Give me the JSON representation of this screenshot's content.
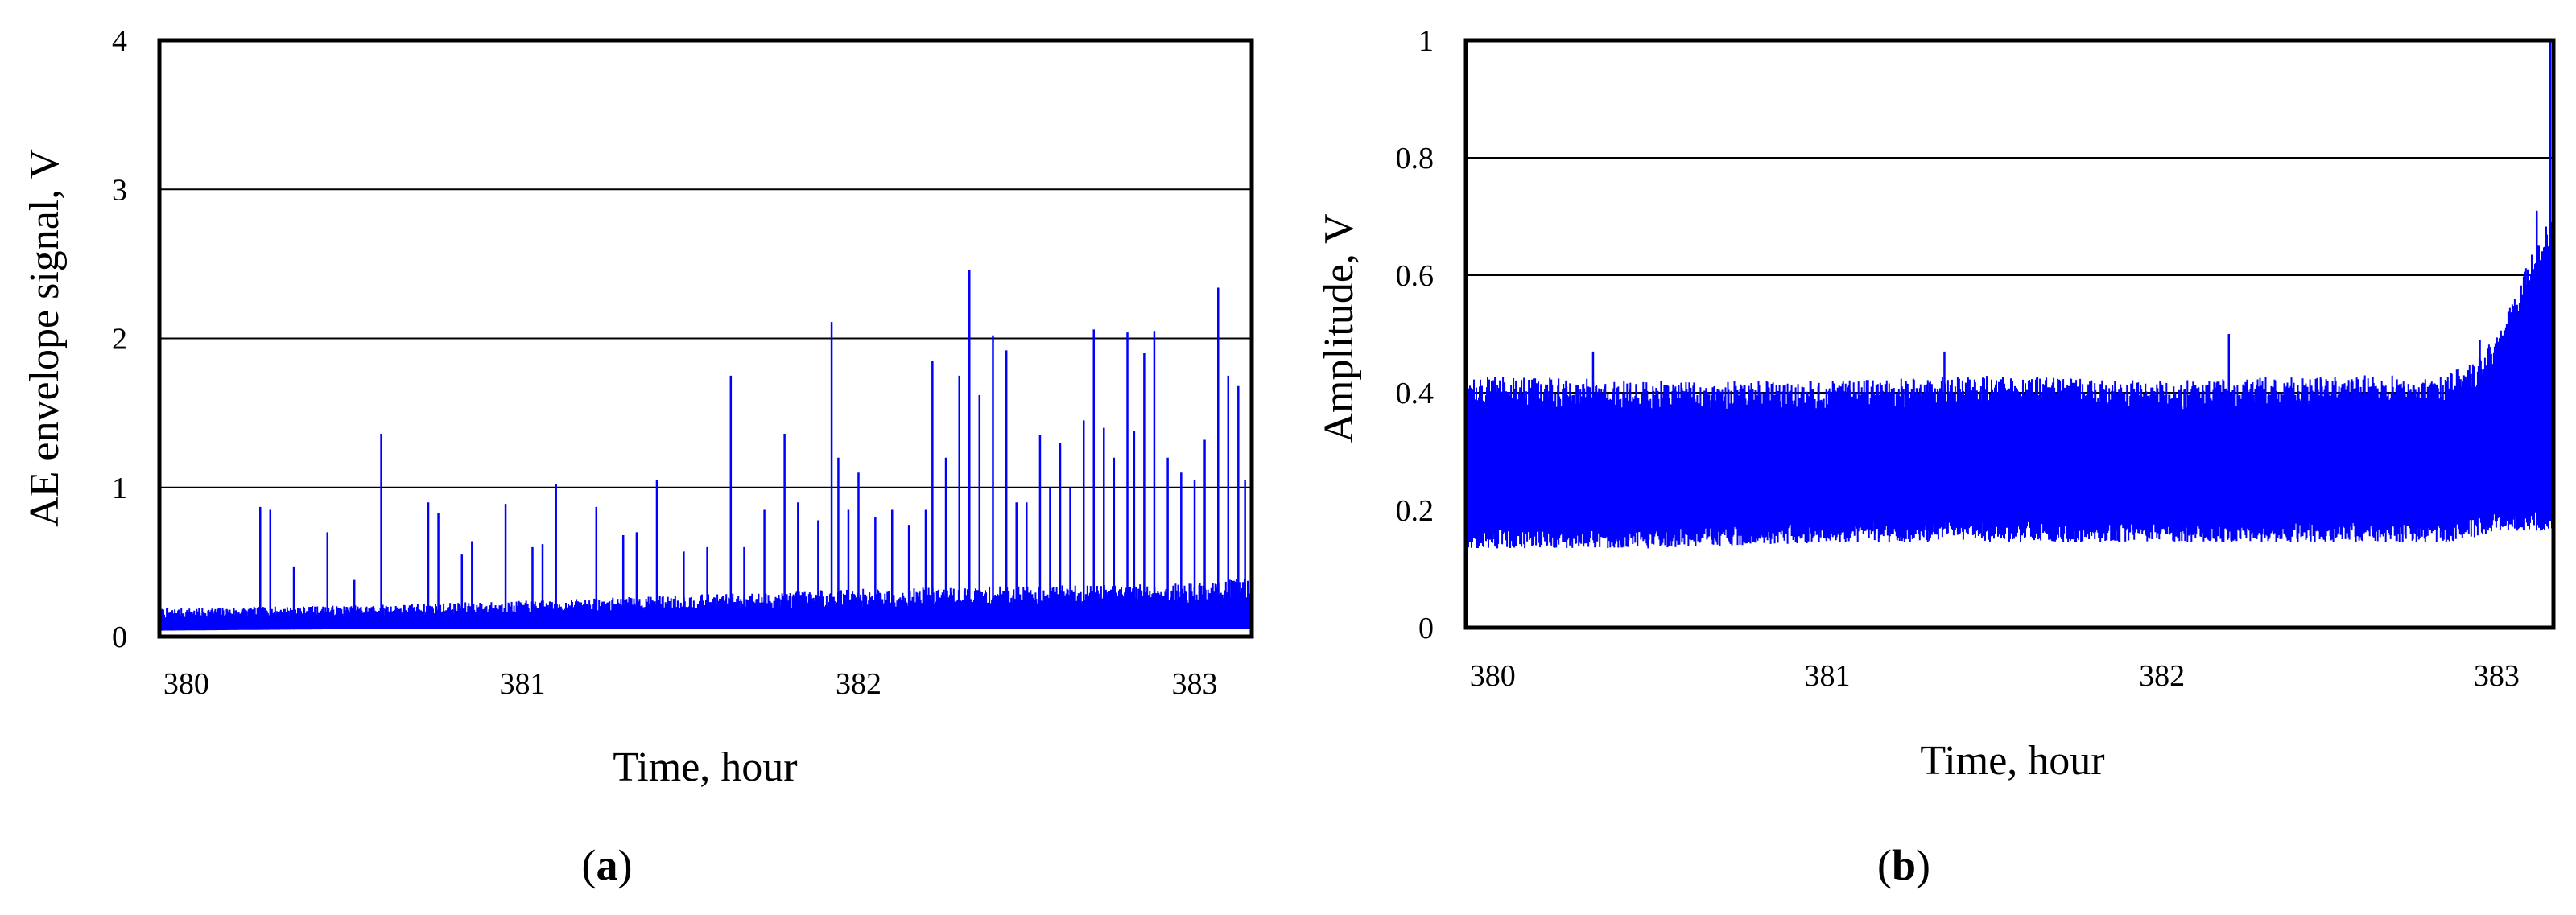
{
  "colors": {
    "series": "#0000ff",
    "frame": "#000000",
    "grid": "#000000",
    "background": "#ffffff"
  },
  "chart_data": [
    {
      "id": "a",
      "type": "line",
      "panel_label": "a",
      "xlabel": "Time, hour",
      "ylabel": "AE envelope signal, V",
      "xlim": [
        379.92,
        383.17
      ],
      "ylim": [
        0,
        4
      ],
      "x_ticks": [
        380,
        381,
        382,
        383
      ],
      "y_ticks": [
        0,
        1,
        2,
        3,
        4
      ],
      "x_tick_labels": [
        "380",
        "381",
        "382",
        "383"
      ],
      "y_tick_labels": [
        "0",
        "1",
        "2",
        "3",
        "4"
      ],
      "grid": "horizontal",
      "series": [
        {
          "style": "dense-envelope",
          "baseline": [
            [
              379.92,
              0.04,
              0.19
            ],
            [
              380.5,
              0.05,
              0.21
            ],
            [
              381.0,
              0.05,
              0.24
            ],
            [
              381.5,
              0.05,
              0.28
            ],
            [
              382.0,
              0.05,
              0.32
            ],
            [
              382.5,
              0.05,
              0.34
            ],
            [
              383.0,
              0.05,
              0.36
            ],
            [
              383.17,
              0.05,
              0.4
            ]
          ],
          "spikes": [
            [
              380.22,
              0.87
            ],
            [
              380.25,
              0.85
            ],
            [
              380.32,
              0.47
            ],
            [
              380.42,
              0.7
            ],
            [
              380.5,
              0.38
            ],
            [
              380.58,
              1.36
            ],
            [
              380.72,
              0.9
            ],
            [
              380.75,
              0.83
            ],
            [
              380.82,
              0.55
            ],
            [
              380.85,
              0.64
            ],
            [
              380.95,
              0.89
            ],
            [
              381.03,
              0.6
            ],
            [
              381.06,
              0.62
            ],
            [
              381.1,
              1.02
            ],
            [
              381.22,
              0.87
            ],
            [
              381.3,
              0.68
            ],
            [
              381.34,
              0.7
            ],
            [
              381.4,
              1.05
            ],
            [
              381.48,
              0.57
            ],
            [
              381.55,
              0.6
            ],
            [
              381.62,
              1.75
            ],
            [
              381.66,
              0.6
            ],
            [
              381.72,
              0.85
            ],
            [
              381.78,
              1.36
            ],
            [
              381.82,
              0.9
            ],
            [
              381.88,
              0.78
            ],
            [
              381.92,
              2.11
            ],
            [
              381.94,
              1.2
            ],
            [
              381.97,
              0.85
            ],
            [
              382.0,
              1.1
            ],
            [
              382.05,
              0.8
            ],
            [
              382.1,
              0.85
            ],
            [
              382.15,
              0.75
            ],
            [
              382.2,
              0.85
            ],
            [
              382.22,
              1.85
            ],
            [
              382.26,
              1.2
            ],
            [
              382.3,
              1.75
            ],
            [
              382.33,
              2.46
            ],
            [
              382.36,
              1.62
            ],
            [
              382.4,
              2.02
            ],
            [
              382.44,
              1.92
            ],
            [
              382.47,
              0.9
            ],
            [
              382.5,
              0.9
            ],
            [
              382.54,
              1.35
            ],
            [
              382.57,
              1.0
            ],
            [
              382.6,
              1.3
            ],
            [
              382.63,
              1.0
            ],
            [
              382.67,
              1.45
            ],
            [
              382.7,
              2.06
            ],
            [
              382.73,
              1.4
            ],
            [
              382.76,
              1.2
            ],
            [
              382.8,
              2.04
            ],
            [
              382.82,
              1.38
            ],
            [
              382.85,
              1.9
            ],
            [
              382.88,
              2.05
            ],
            [
              382.92,
              1.2
            ],
            [
              382.96,
              1.1
            ],
            [
              383.0,
              1.05
            ],
            [
              383.03,
              1.32
            ],
            [
              383.07,
              2.34
            ],
            [
              383.1,
              1.75
            ],
            [
              383.13,
              1.68
            ],
            [
              383.15,
              1.05
            ]
          ]
        }
      ]
    },
    {
      "id": "b",
      "type": "line",
      "panel_label": "b",
      "xlabel": "Time, hour",
      "ylabel": "Amplitude,  V",
      "xlim": [
        379.92,
        383.17
      ],
      "ylim": [
        0,
        1
      ],
      "x_ticks": [
        380,
        381,
        382,
        383
      ],
      "y_ticks": [
        0,
        0.2,
        0.4,
        0.6,
        0.8,
        1
      ],
      "x_tick_labels": [
        "380",
        "381",
        "382",
        "383"
      ],
      "y_tick_labels": [
        "0",
        "0.2",
        "0.4",
        "0.6",
        "0.8",
        "1"
      ],
      "grid": "horizontal",
      "series": [
        {
          "style": "dense-band",
          "band": [
            [
              379.92,
              0.17,
              0.4
            ],
            [
              380.5,
              0.17,
              0.39
            ],
            [
              381.0,
              0.18,
              0.39
            ],
            [
              381.5,
              0.18,
              0.4
            ],
            [
              382.0,
              0.18,
              0.39
            ],
            [
              382.5,
              0.18,
              0.4
            ],
            [
              382.85,
              0.18,
              0.4
            ],
            [
              382.95,
              0.19,
              0.43
            ],
            [
              383.0,
              0.2,
              0.47
            ],
            [
              383.05,
              0.2,
              0.53
            ],
            [
              383.1,
              0.2,
              0.6
            ],
            [
              383.15,
              0.2,
              0.66
            ],
            [
              383.17,
              0.2,
              0.68
            ]
          ],
          "peaks": [
            [
              380.3,
              0.47
            ],
            [
              381.35,
              0.47
            ],
            [
              382.2,
              0.5
            ],
            [
              382.95,
              0.49
            ],
            [
              383.12,
              0.71
            ],
            [
              383.16,
              1.0
            ]
          ]
        }
      ]
    }
  ]
}
